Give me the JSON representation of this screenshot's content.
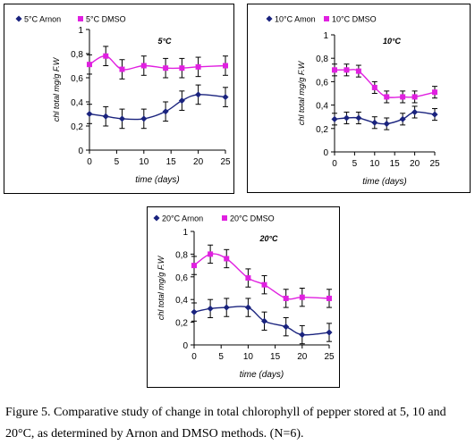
{
  "colors": {
    "arnon": "#1a237e",
    "dmso": "#e020e0",
    "axis": "#000000"
  },
  "chart_data": [
    {
      "type": "line",
      "title": "5°C",
      "xlabel": "time (days)",
      "ylabel": "chl total mg/g F.W",
      "xlim": [
        0,
        25
      ],
      "ylim": [
        0,
        1
      ],
      "xticks": [
        "0",
        "5",
        "10",
        "15",
        "20",
        "25"
      ],
      "yticks": [
        "0",
        "0,2",
        "0,4",
        "0,6",
        "0,8",
        "1"
      ],
      "legend_position": "top-left",
      "series": [
        {
          "name": "5°C Arnon",
          "marker": "diamond",
          "x": [
            0,
            3,
            6,
            10,
            14,
            17,
            20,
            25
          ],
          "y": [
            0.3,
            0.28,
            0.26,
            0.26,
            0.32,
            0.41,
            0.46,
            0.44
          ],
          "err": [
            0.08,
            0.08,
            0.08,
            0.08,
            0.08,
            0.08,
            0.08,
            0.08
          ]
        },
        {
          "name": "5°C DMSO",
          "marker": "square",
          "x": [
            0,
            3,
            6,
            10,
            14,
            17,
            20,
            25
          ],
          "y": [
            0.71,
            0.78,
            0.67,
            0.7,
            0.68,
            0.68,
            0.69,
            0.7
          ],
          "err": [
            0.08,
            0.08,
            0.08,
            0.08,
            0.08,
            0.08,
            0.08,
            0.08
          ]
        }
      ]
    },
    {
      "type": "line",
      "title": "10°C",
      "xlabel": "time  (days)",
      "ylabel": "chl total mg/g F.W",
      "xlim": [
        0,
        25
      ],
      "ylim": [
        0,
        1
      ],
      "xticks": [
        "0",
        "5",
        "10",
        "15",
        "20",
        "25"
      ],
      "yticks": [
        "0",
        "0,2",
        "0,4",
        "0,6",
        "0,8",
        "1"
      ],
      "legend_position": "top-left",
      "series": [
        {
          "name": "10°C Amon",
          "marker": "diamond",
          "x": [
            0,
            3,
            6,
            10,
            13,
            17,
            20,
            25
          ],
          "y": [
            0.28,
            0.29,
            0.29,
            0.25,
            0.24,
            0.28,
            0.34,
            0.32
          ],
          "err": [
            0.05,
            0.05,
            0.05,
            0.05,
            0.05,
            0.05,
            0.05,
            0.05
          ]
        },
        {
          "name": "10°C DMSO",
          "marker": "square",
          "x": [
            0,
            3,
            6,
            10,
            13,
            17,
            20,
            25
          ],
          "y": [
            0.7,
            0.7,
            0.69,
            0.55,
            0.47,
            0.47,
            0.47,
            0.51
          ],
          "err": [
            0.05,
            0.05,
            0.05,
            0.05,
            0.05,
            0.05,
            0.05,
            0.05
          ]
        }
      ]
    },
    {
      "type": "line",
      "title": "20°C",
      "xlabel": "time  (days)",
      "ylabel": "chl total mg/g F.W",
      "xlim": [
        0,
        25
      ],
      "ylim": [
        0,
        1
      ],
      "xticks": [
        "0",
        "5",
        "10",
        "15",
        "20",
        "25"
      ],
      "yticks": [
        "0",
        "0,2",
        "0,4",
        "0,6",
        "0,8",
        "1"
      ],
      "legend_position": "top-left",
      "series": [
        {
          "name": "20°C Arnon",
          "marker": "diamond",
          "x": [
            0,
            3,
            6,
            10,
            13,
            17,
            20,
            25
          ],
          "y": [
            0.29,
            0.32,
            0.33,
            0.33,
            0.21,
            0.16,
            0.09,
            0.11
          ],
          "err": [
            0.08,
            0.08,
            0.08,
            0.08,
            0.08,
            0.08,
            0.08,
            0.08
          ]
        },
        {
          "name": "20°C DMSO",
          "marker": "square",
          "x": [
            0,
            3,
            6,
            10,
            13,
            17,
            20,
            25
          ],
          "y": [
            0.7,
            0.8,
            0.76,
            0.59,
            0.53,
            0.41,
            0.42,
            0.41
          ],
          "err": [
            0.08,
            0.08,
            0.08,
            0.08,
            0.08,
            0.08,
            0.08,
            0.08
          ]
        }
      ]
    }
  ],
  "caption": {
    "line1": "Figure 5. Comparative study of change in total chlorophyll of pepper stored at 5, 10 and",
    "line2": "20°C, as determined by Arnon and DMSO methods. (N=6)."
  }
}
